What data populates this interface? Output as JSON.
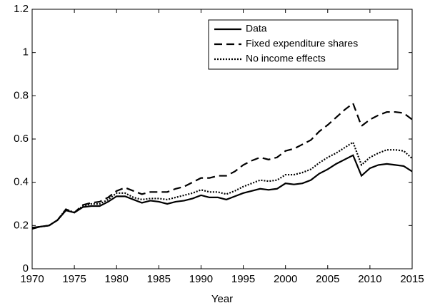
{
  "chart_data": {
    "type": "line",
    "x_label": "Year",
    "x": [
      1970,
      1971,
      1972,
      1973,
      1974,
      1975,
      1976,
      1977,
      1978,
      1979,
      1980,
      1981,
      1982,
      1983,
      1984,
      1985,
      1986,
      1987,
      1988,
      1989,
      1990,
      1991,
      1992,
      1993,
      1994,
      1995,
      1996,
      1997,
      1998,
      1999,
      2000,
      2001,
      2002,
      2003,
      2004,
      2005,
      2006,
      2007,
      2008,
      2009,
      2010,
      2011,
      2012,
      2013,
      2014,
      2015
    ],
    "series": [
      {
        "name": "Data",
        "color": "#000000",
        "line_style": "solid",
        "values": [
          0.185,
          0.195,
          0.2,
          0.225,
          0.27,
          0.26,
          0.285,
          0.29,
          0.29,
          0.31,
          0.335,
          0.335,
          0.32,
          0.305,
          0.315,
          0.31,
          0.3,
          0.31,
          0.315,
          0.325,
          0.34,
          0.33,
          0.33,
          0.32,
          0.335,
          0.35,
          0.36,
          0.37,
          0.365,
          0.37,
          0.395,
          0.39,
          0.395,
          0.41,
          0.44,
          0.46,
          0.485,
          0.505,
          0.525,
          0.43,
          0.465,
          0.48,
          0.485,
          0.48,
          0.475,
          0.45
        ]
      },
      {
        "name": "Fixed expenditure shares",
        "color": "#000000",
        "line_style": "dashed",
        "values": [
          0.19,
          0.195,
          0.2,
          0.225,
          0.275,
          0.26,
          0.295,
          0.305,
          0.31,
          0.33,
          0.36,
          0.375,
          0.36,
          0.345,
          0.355,
          0.355,
          0.355,
          0.37,
          0.38,
          0.4,
          0.42,
          0.42,
          0.43,
          0.43,
          0.45,
          0.48,
          0.5,
          0.515,
          0.505,
          0.515,
          0.545,
          0.555,
          0.575,
          0.595,
          0.635,
          0.665,
          0.7,
          0.735,
          0.765,
          0.66,
          0.69,
          0.71,
          0.725,
          0.725,
          0.72,
          0.69
        ]
      },
      {
        "name": "No income effects",
        "color": "#000000",
        "line_style": "dotted",
        "values": [
          0.19,
          0.195,
          0.2,
          0.225,
          0.275,
          0.26,
          0.29,
          0.3,
          0.3,
          0.32,
          0.35,
          0.35,
          0.33,
          0.32,
          0.325,
          0.325,
          0.32,
          0.33,
          0.34,
          0.35,
          0.365,
          0.355,
          0.355,
          0.345,
          0.36,
          0.38,
          0.395,
          0.41,
          0.405,
          0.41,
          0.435,
          0.435,
          0.445,
          0.46,
          0.49,
          0.515,
          0.535,
          0.56,
          0.585,
          0.48,
          0.515,
          0.535,
          0.55,
          0.55,
          0.545,
          0.51
        ]
      }
    ],
    "xlim": [
      1970,
      2015
    ],
    "xticks": [
      1970,
      1975,
      1980,
      1985,
      1990,
      1995,
      2000,
      2005,
      2010,
      2015
    ],
    "ylim": [
      0,
      1.2
    ],
    "yticks": [
      0,
      0.2,
      0.4,
      0.6,
      0.8,
      1,
      1.2
    ],
    "grid": false,
    "legend": "upper right"
  }
}
